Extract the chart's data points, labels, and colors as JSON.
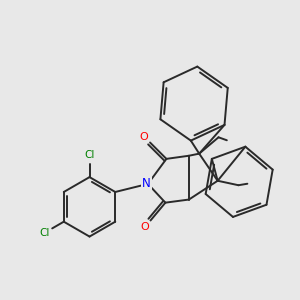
{
  "bg_color": "#e8e8e8",
  "bond_color": "#2a2a2a",
  "N_color": "#0000ff",
  "O_color": "#ff0000",
  "Cl_color": "#008000",
  "lw": 1.4,
  "xlim": [
    0,
    10
  ],
  "ylim": [
    0,
    10
  ]
}
